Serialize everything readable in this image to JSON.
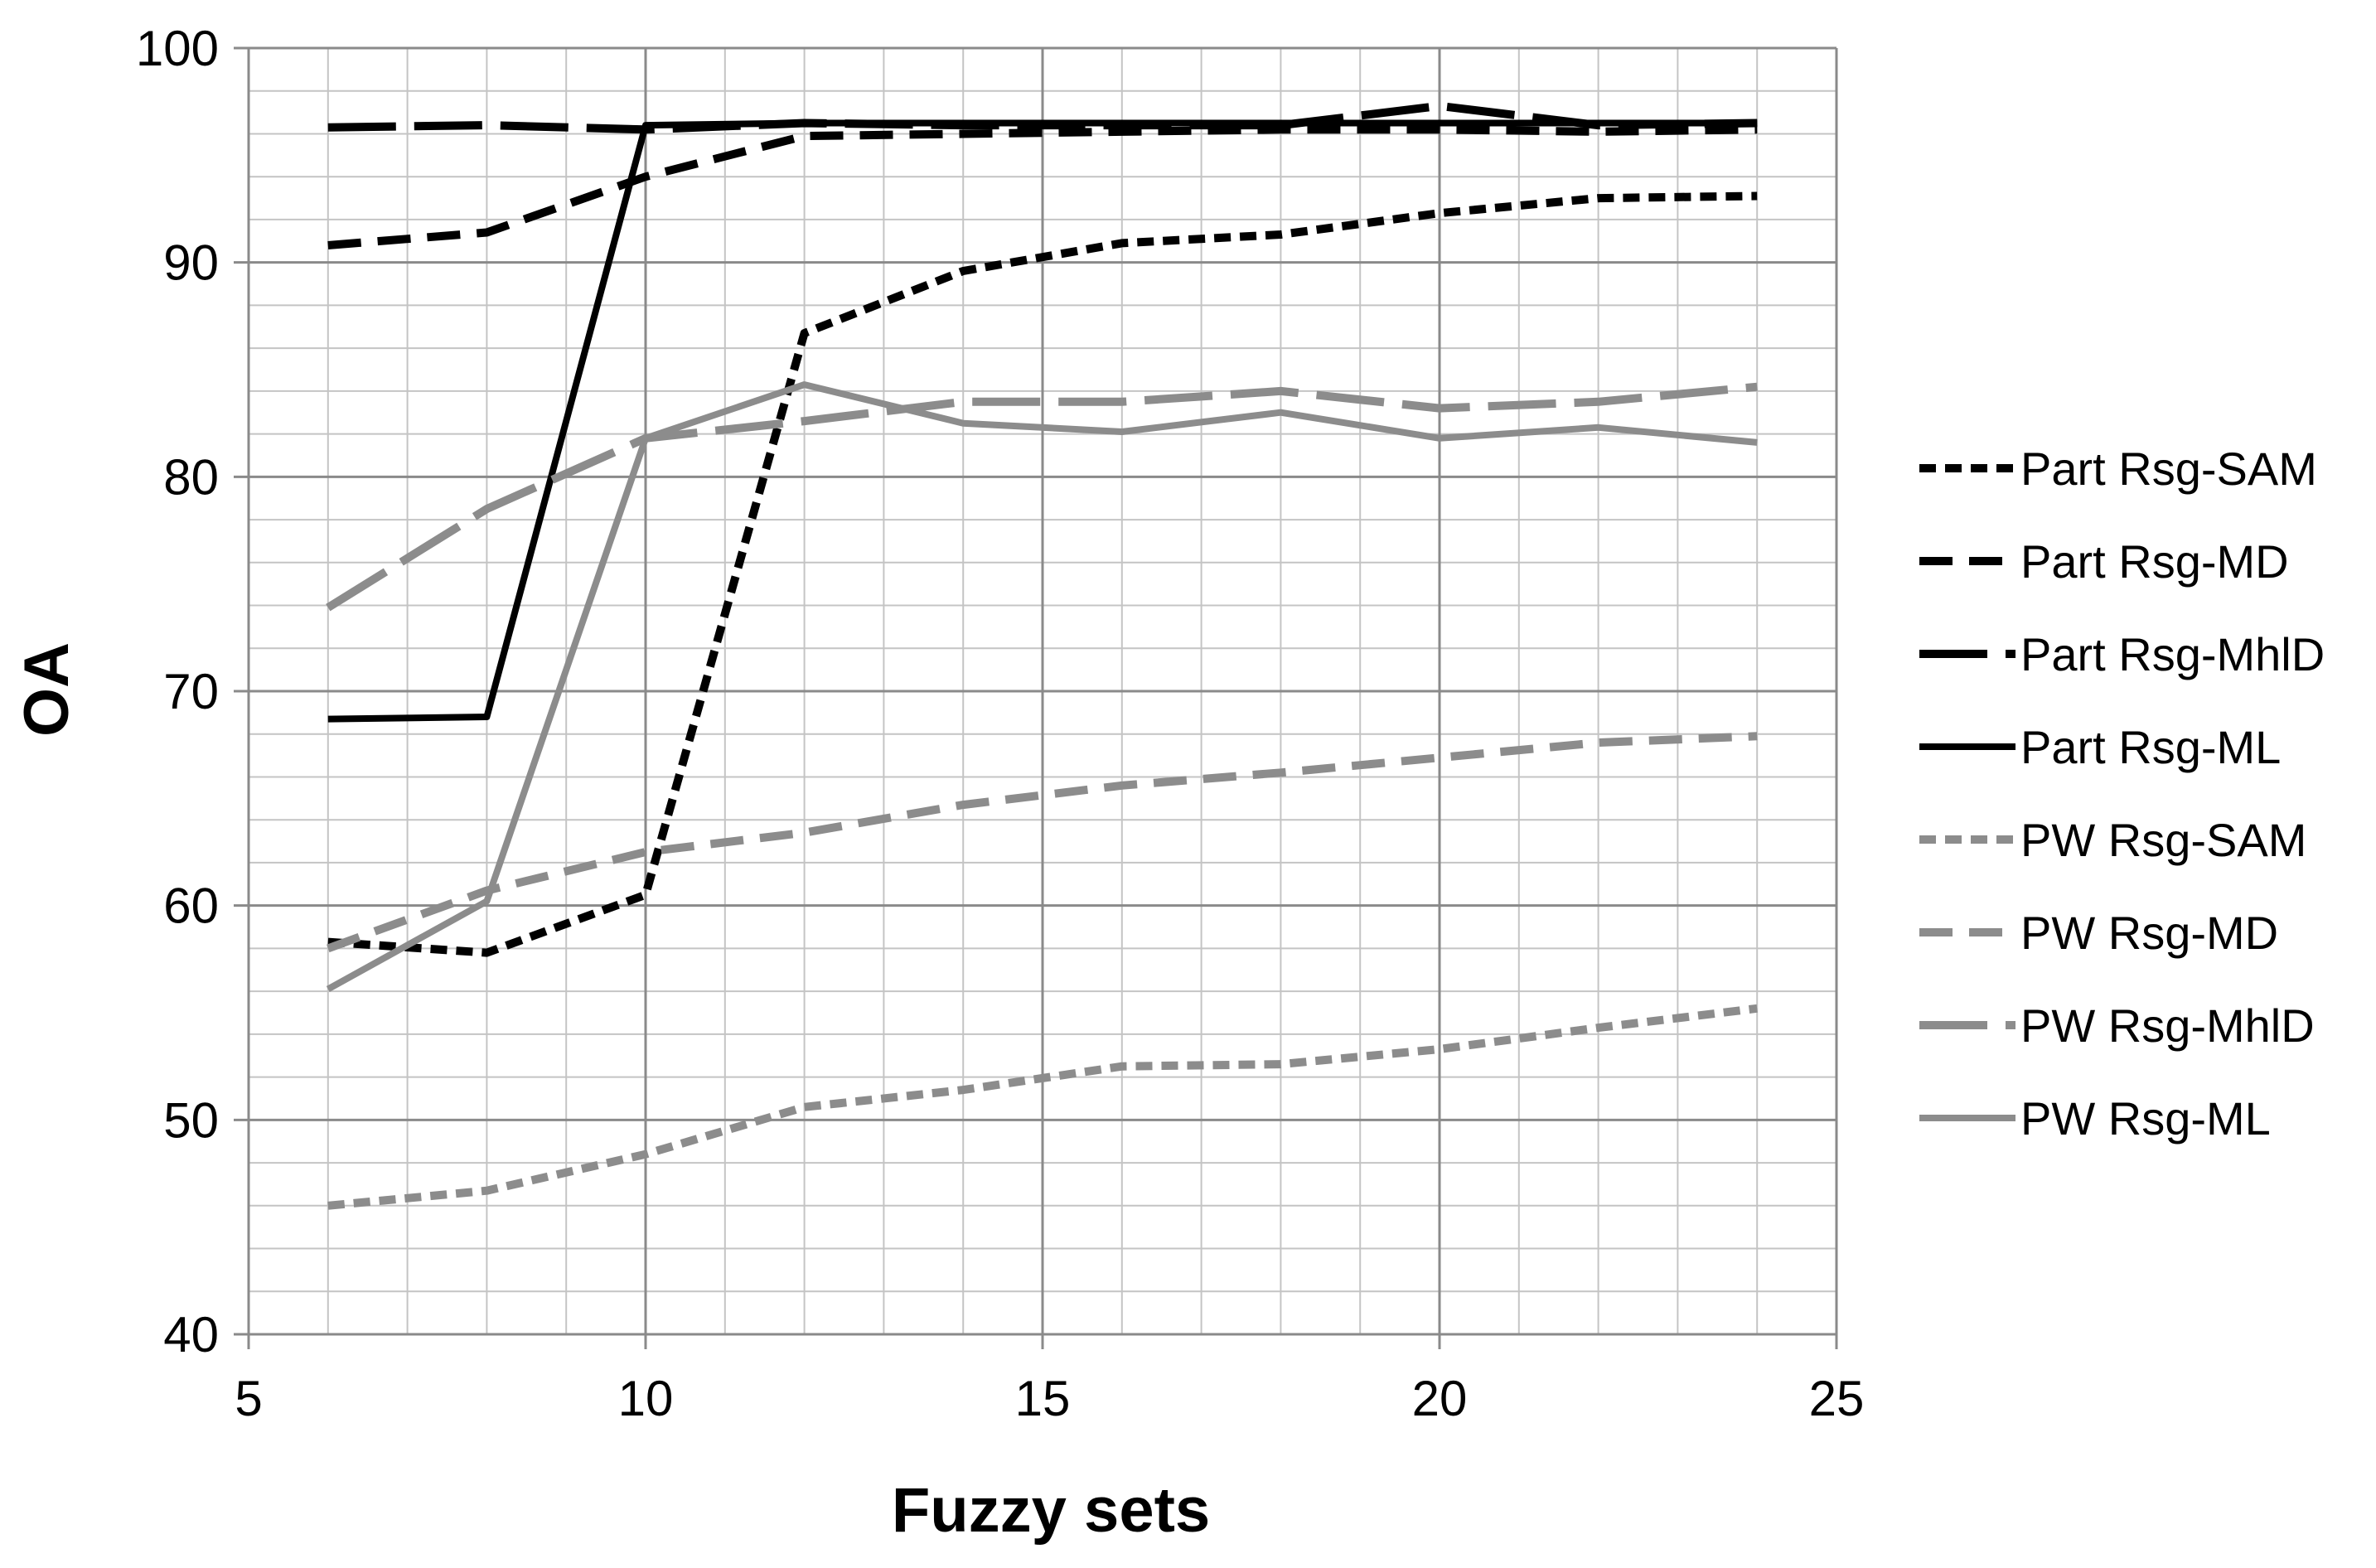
{
  "chart_data": {
    "type": "line",
    "title": "",
    "xlabel": "Fuzzy sets",
    "ylabel": "OA",
    "xlim": [
      5,
      25
    ],
    "ylim": [
      40,
      100
    ],
    "x_ticks": [
      5,
      10,
      15,
      20,
      25
    ],
    "y_ticks": [
      40,
      50,
      60,
      70,
      80,
      90,
      100
    ],
    "x_minor_step": 1,
    "y_minor_step": 2,
    "grid": true,
    "legend_position": "right",
    "x": [
      6,
      8,
      10,
      12,
      14,
      16,
      18,
      20,
      22,
      24
    ],
    "series": [
      {
        "name": "Part Rsg-SAM",
        "color": "#000000",
        "dash": "short-dash",
        "values": [
          58.3,
          57.8,
          60.5,
          86.7,
          89.6,
          90.9,
          91.3,
          92.3,
          93.0,
          93.1
        ]
      },
      {
        "name": "Part Rsg-MD",
        "color": "#000000",
        "dash": "dash",
        "values": [
          90.8,
          91.4,
          94.0,
          95.9,
          96.0,
          96.1,
          96.2,
          96.2,
          96.1,
          96.2
        ]
      },
      {
        "name": "Part Rsg-MhlD",
        "color": "#000000",
        "dash": "long-dash",
        "values": [
          96.3,
          96.4,
          96.2,
          96.5,
          96.4,
          96.4,
          96.4,
          97.3,
          96.4,
          96.5
        ]
      },
      {
        "name": "Part Rsg-ML",
        "color": "#000000",
        "dash": "solid",
        "values": [
          68.7,
          68.8,
          96.4,
          96.5,
          96.5,
          96.5,
          96.5,
          96.5,
          96.5,
          96.5
        ]
      },
      {
        "name": "PW Rsg-SAM",
        "color": "#8c8c8c",
        "dash": "short-dash",
        "values": [
          46.0,
          46.7,
          48.4,
          50.6,
          51.4,
          52.5,
          52.6,
          53.3,
          54.3,
          55.2
        ]
      },
      {
        "name": "PW Rsg-MD",
        "color": "#8c8c8c",
        "dash": "dash",
        "values": [
          58.0,
          60.7,
          62.5,
          63.4,
          64.7,
          65.6,
          66.2,
          66.9,
          67.6,
          67.9
        ]
      },
      {
        "name": "PW Rsg-MhlD",
        "color": "#8c8c8c",
        "dash": "long-dash",
        "values": [
          73.9,
          78.5,
          81.8,
          82.6,
          83.5,
          83.5,
          84.0,
          83.2,
          83.5,
          84.2
        ]
      },
      {
        "name": "PW Rsg-ML",
        "color": "#8c8c8c",
        "dash": "solid",
        "values": [
          56.1,
          60.2,
          81.8,
          84.3,
          82.5,
          82.1,
          83.0,
          81.8,
          82.3,
          81.6
        ]
      }
    ]
  }
}
